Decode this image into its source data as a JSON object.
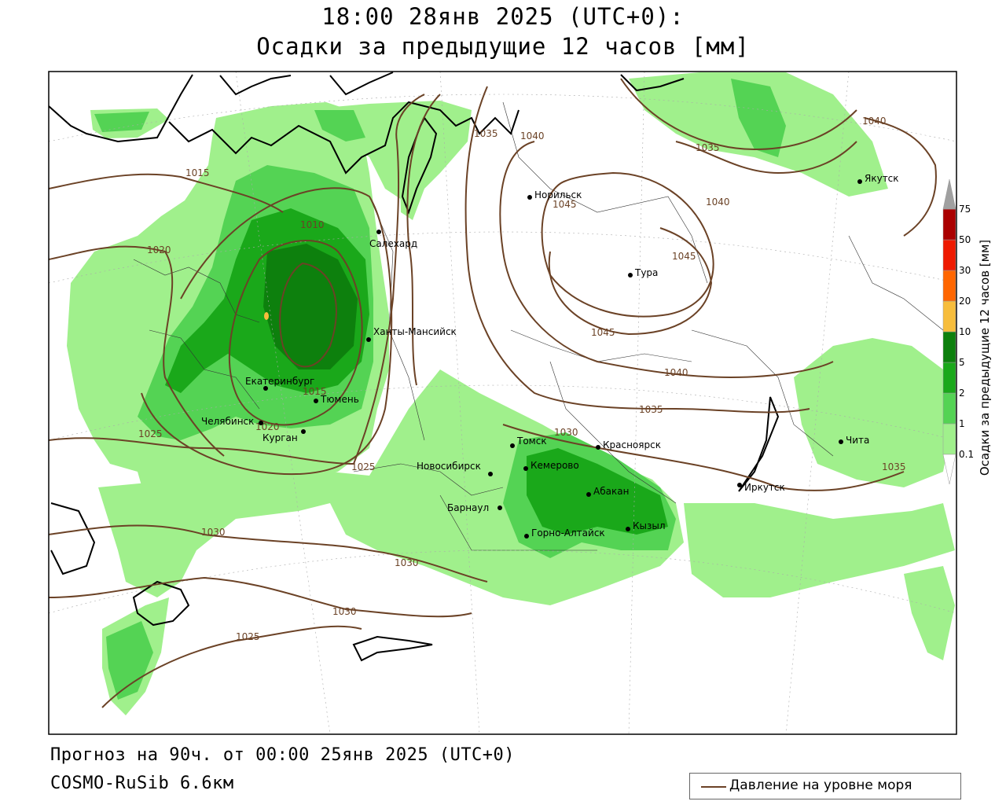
{
  "header": {
    "title_line1": "18:00 28янв 2025 (UTC+0):",
    "title_line2": "Осадки за предыдущие 12 часов [мм]"
  },
  "footer": {
    "forecast": "Прогноз на 90ч. от 00:00 25янв 2025 (UTC+0)",
    "model": "COSMO-RuSib 6.6км"
  },
  "legend": {
    "isobar_label": "Давление на уровне моря",
    "isobar_color": "#6b4226"
  },
  "colorbar": {
    "title": "Осадки за предыдущие 12 часов [мм]",
    "ticks": [
      "0.1",
      "1",
      "2",
      "5",
      "10",
      "20",
      "30",
      "50",
      "75"
    ],
    "colors": [
      "#ffffff",
      "#a0f08c",
      "#54d354",
      "#1aa81a",
      "#0d800d",
      "#f7bd3c",
      "#ff6600",
      "#ee1a00",
      "#aa0000",
      "#a0a0a0"
    ]
  },
  "cities": [
    {
      "name": "Норильск",
      "label": "Норильск"
    },
    {
      "name": "Салехард",
      "label": "Салехард"
    },
    {
      "name": "Тура",
      "label": "Тура"
    },
    {
      "name": "Якутск",
      "label": "Якутск"
    },
    {
      "name": "Ханты-Мансийск",
      "label": "Ханты-Мансийск"
    },
    {
      "name": "Екатеринбург",
      "label": "Екатеринбург"
    },
    {
      "name": "Тюмень",
      "label": "Тюмень"
    },
    {
      "name": "Челябинск",
      "label": "Челябинск"
    },
    {
      "name": "Курган",
      "label": "Курган"
    },
    {
      "name": "Томск",
      "label": "Томск"
    },
    {
      "name": "Красноярск",
      "label": "Красноярск"
    },
    {
      "name": "Новосибирск",
      "label": "Новосибирск"
    },
    {
      "name": "Кемерово",
      "label": "Кемерово"
    },
    {
      "name": "Абакан",
      "label": "Абакан"
    },
    {
      "name": "Барнаул",
      "label": "Барнаул"
    },
    {
      "name": "Горно-Алтайск",
      "label": "Горно-Алтайск"
    },
    {
      "name": "Кызыл",
      "label": "Кызыл"
    },
    {
      "name": "Иркутск",
      "label": "Иркутск"
    },
    {
      "name": "Чита",
      "label": "Чита"
    }
  ],
  "isobar_labels": [
    "1015",
    "1020",
    "1010",
    "1015",
    "1020",
    "1025",
    "1030",
    "1030",
    "1030",
    "1025",
    "1025",
    "1035",
    "1040",
    "1045",
    "1045",
    "1045",
    "1040",
    "1040",
    "1035",
    "1030",
    "1035",
    "1035",
    "1040"
  ]
}
